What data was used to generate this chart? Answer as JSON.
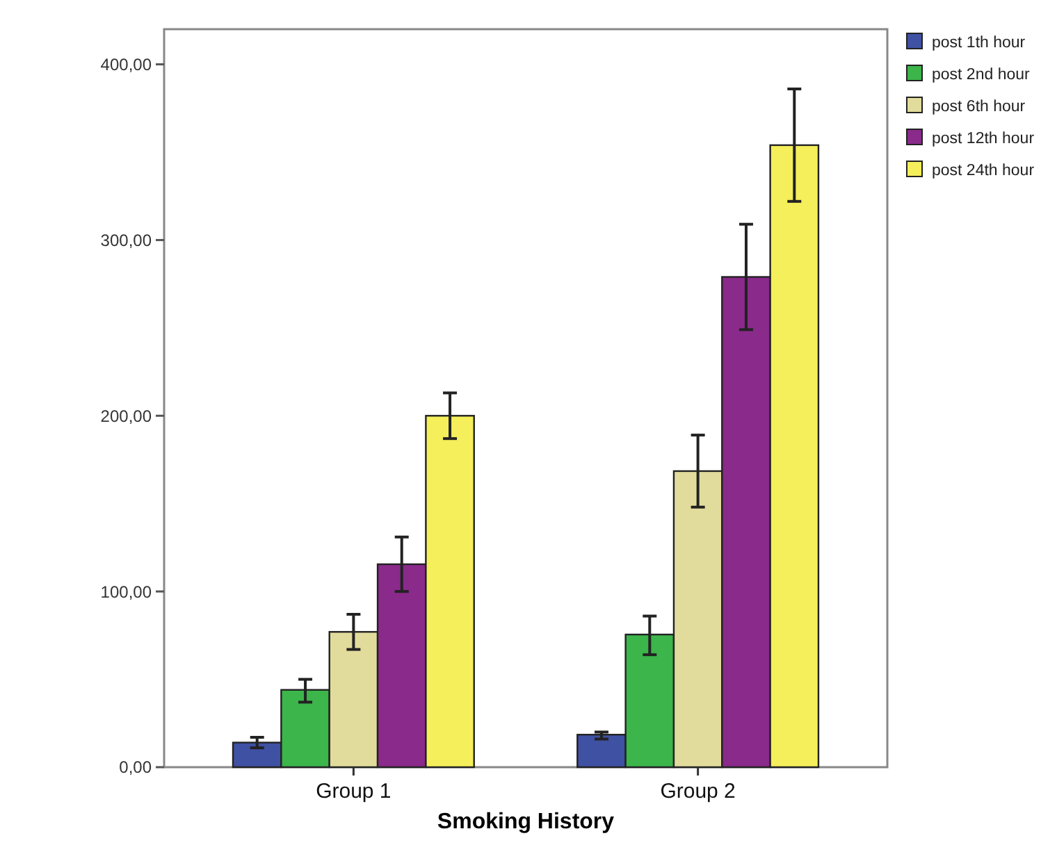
{
  "chart_data": {
    "type": "bar",
    "xlabel": "Smoking History",
    "categories": [
      "Group 1",
      "Group 2"
    ],
    "series": [
      {
        "name": "post 1th hour",
        "color": "#3f51a3",
        "values": [
          14,
          18.5
        ],
        "errors": [
          [
            11,
            17
          ],
          [
            16,
            20
          ]
        ]
      },
      {
        "name": "post 2nd hour",
        "color": "#3cb54b",
        "values": [
          44,
          75.5
        ],
        "errors": [
          [
            37,
            50
          ],
          [
            64,
            86
          ]
        ]
      },
      {
        "name": "post 6th hour",
        "color": "#e2dc9c",
        "values": [
          77,
          168.5
        ],
        "errors": [
          [
            67,
            87
          ],
          [
            148,
            189
          ]
        ]
      },
      {
        "name": "post 12th hour",
        "color": "#8a2a8b",
        "values": [
          115.5,
          279
        ],
        "errors": [
          [
            100,
            131
          ],
          [
            249,
            309
          ]
        ]
      },
      {
        "name": "post 24th hour",
        "color": "#f4ef5a",
        "values": [
          200,
          354
        ],
        "errors": [
          [
            187,
            213
          ],
          [
            322,
            386
          ]
        ]
      }
    ],
    "ylim": [
      0,
      420
    ],
    "yticks": [
      {
        "value": 0,
        "label": "0,00"
      },
      {
        "value": 100,
        "label": "100,00"
      },
      {
        "value": 200,
        "label": "200,00"
      },
      {
        "value": 300,
        "label": "300,00"
      },
      {
        "value": 400,
        "label": "400,00"
      }
    ],
    "grid": false,
    "legend": "top right"
  }
}
